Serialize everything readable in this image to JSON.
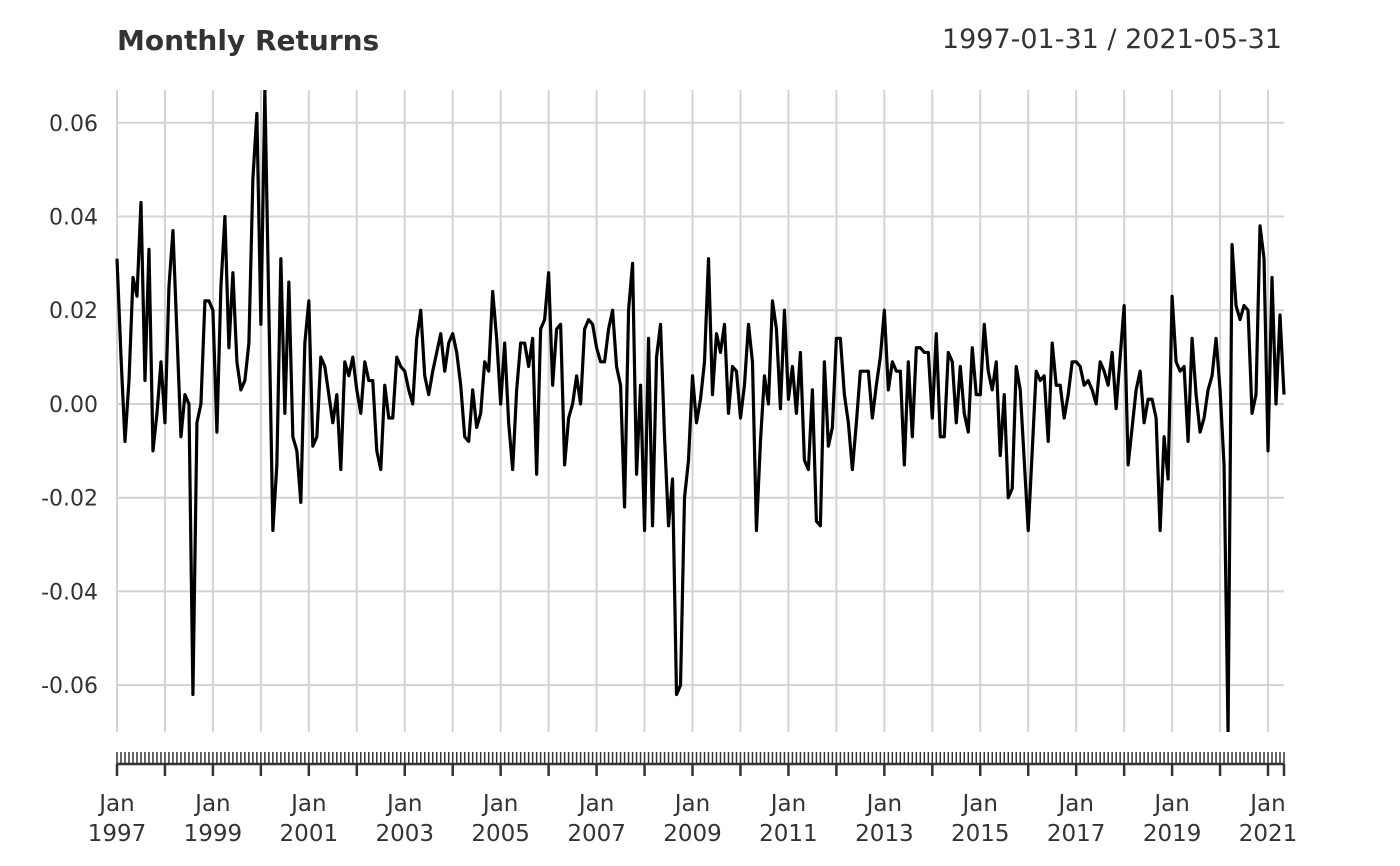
{
  "chart_data": {
    "type": "line",
    "title": "Monthly Returns",
    "date_range": "1997-01-31 / 2021-05-31",
    "frequency": "monthly",
    "start": "1997-01",
    "end": "2021-05",
    "ylim": [
      -0.07,
      0.067
    ],
    "yticks": [
      "0.06",
      "0.04",
      "0.02",
      "0.00",
      "-0.02",
      "-0.04",
      "-0.06"
    ],
    "ytick_values": [
      0.06,
      0.04,
      0.02,
      0.0,
      -0.02,
      -0.04,
      -0.06
    ],
    "xticks": [
      {
        "month": "Jan",
        "year": "1997"
      },
      {
        "month": "Jan",
        "year": "1999"
      },
      {
        "month": "Jan",
        "year": "2001"
      },
      {
        "month": "Jan",
        "year": "2003"
      },
      {
        "month": "Jan",
        "year": "2005"
      },
      {
        "month": "Jan",
        "year": "2007"
      },
      {
        "month": "Jan",
        "year": "2009"
      },
      {
        "month": "Jan",
        "year": "2011"
      },
      {
        "month": "Jan",
        "year": "2013"
      },
      {
        "month": "Jan",
        "year": "2015"
      },
      {
        "month": "Jan",
        "year": "2017"
      },
      {
        "month": "Jan",
        "year": "2019"
      },
      {
        "month": "Jan",
        "year": "2021"
      }
    ],
    "grid": true,
    "line_color": "#000000",
    "grid_color": "#d3d3d3",
    "values": [
      0.031,
      0.01,
      -0.008,
      0.005,
      0.027,
      0.023,
      0.043,
      0.005,
      0.033,
      -0.01,
      -0.002,
      0.009,
      -0.004,
      0.025,
      0.037,
      0.015,
      -0.007,
      0.002,
      0.0,
      -0.062,
      -0.004,
      0.0,
      0.022,
      0.022,
      0.02,
      -0.006,
      0.025,
      0.04,
      0.012,
      0.028,
      0.009,
      0.003,
      0.005,
      0.013,
      0.048,
      0.062,
      0.017,
      0.067,
      0.02,
      -0.027,
      -0.013,
      0.031,
      -0.002,
      0.026,
      -0.007,
      -0.01,
      -0.021,
      0.013,
      0.022,
      -0.009,
      -0.007,
      0.01,
      0.008,
      0.002,
      -0.004,
      0.002,
      -0.014,
      0.009,
      0.006,
      0.01,
      0.003,
      -0.002,
      0.009,
      0.005,
      0.005,
      -0.01,
      -0.014,
      0.004,
      -0.003,
      -0.003,
      0.01,
      0.008,
      0.007,
      0.003,
      0.0,
      0.014,
      0.02,
      0.006,
      0.002,
      0.007,
      0.011,
      0.015,
      0.007,
      0.013,
      0.015,
      0.011,
      0.004,
      -0.007,
      -0.008,
      0.003,
      -0.005,
      -0.002,
      0.009,
      0.007,
      0.024,
      0.014,
      0.0,
      0.013,
      -0.004,
      -0.014,
      0.003,
      0.013,
      0.013,
      0.008,
      0.014,
      -0.015,
      0.016,
      0.018,
      0.028,
      0.004,
      0.016,
      0.017,
      -0.013,
      -0.003,
      0.0,
      0.006,
      0.0,
      0.016,
      0.018,
      0.017,
      0.012,
      0.009,
      0.009,
      0.016,
      0.02,
      0.008,
      0.004,
      -0.022,
      0.02,
      0.03,
      -0.015,
      0.004,
      -0.027,
      0.014,
      -0.026,
      0.01,
      0.017,
      -0.007,
      -0.026,
      -0.016,
      -0.062,
      -0.06,
      -0.02,
      -0.012,
      0.006,
      -0.004,
      0.001,
      0.009,
      0.031,
      0.002,
      0.015,
      0.011,
      0.017,
      -0.002,
      0.008,
      0.007,
      -0.003,
      0.004,
      0.017,
      0.009,
      -0.027,
      -0.008,
      0.006,
      0.0,
      0.022,
      0.016,
      -0.001,
      0.02,
      0.001,
      0.008,
      -0.002,
      0.011,
      -0.012,
      -0.014,
      0.003,
      -0.025,
      -0.026,
      0.009,
      -0.009,
      -0.005,
      0.014,
      0.014,
      0.002,
      -0.004,
      -0.014,
      -0.004,
      0.007,
      0.007,
      0.007,
      -0.003,
      0.004,
      0.01,
      0.02,
      0.003,
      0.009,
      0.007,
      0.007,
      -0.013,
      0.009,
      -0.007,
      0.012,
      0.012,
      0.011,
      0.011,
      -0.003,
      0.015,
      -0.007,
      -0.007,
      0.011,
      0.009,
      -0.004,
      0.008,
      -0.002,
      -0.006,
      0.012,
      0.002,
      0.002,
      0.017,
      0.007,
      0.003,
      0.009,
      -0.011,
      0.002,
      -0.02,
      -0.018,
      0.008,
      0.003,
      -0.012,
      -0.027,
      -0.01,
      0.007,
      0.005,
      0.006,
      -0.008,
      0.013,
      0.004,
      0.004,
      -0.003,
      0.002,
      0.009,
      0.009,
      0.008,
      0.004,
      0.005,
      0.003,
      0.0,
      0.009,
      0.007,
      0.004,
      0.011,
      -0.001,
      0.01,
      0.021,
      -0.013,
      -0.005,
      0.003,
      0.007,
      -0.004,
      0.001,
      0.001,
      -0.003,
      -0.027,
      -0.007,
      -0.016,
      0.023,
      0.009,
      0.007,
      0.008,
      -0.008,
      0.014,
      0.002,
      -0.006,
      -0.003,
      0.003,
      0.006,
      0.014,
      0.003,
      -0.013,
      -0.07,
      0.034,
      0.021,
      0.018,
      0.021,
      0.02,
      -0.002,
      0.002,
      0.038,
      0.031,
      -0.01,
      0.027,
      0.0,
      0.019,
      0.002
    ]
  }
}
